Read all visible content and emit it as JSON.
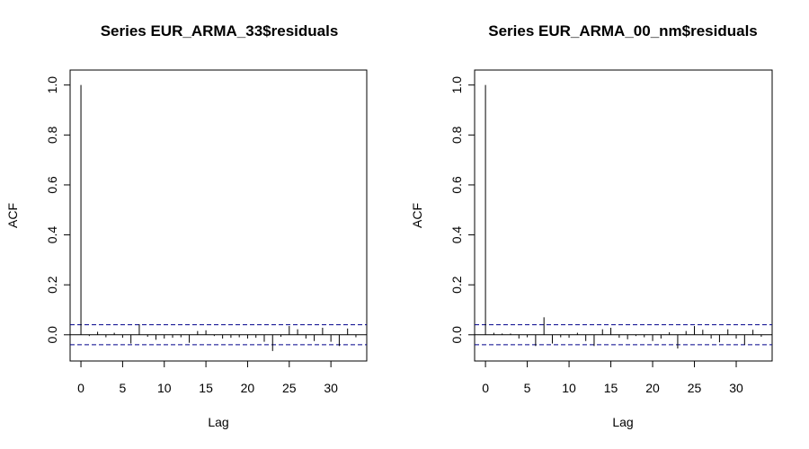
{
  "chart_data": [
    {
      "type": "bar",
      "title": "Series  EUR_ARMA_33$residuals",
      "xlabel": "Lag",
      "ylabel": "ACF",
      "xlim": [
        -1.3,
        34.3
      ],
      "ylim": [
        -0.105,
        1.06
      ],
      "xticks": [
        0,
        5,
        10,
        15,
        20,
        25,
        30
      ],
      "yticks": [
        0.0,
        0.2,
        0.4,
        0.6,
        0.8,
        1.0
      ],
      "ci": 0.04,
      "ci_color": "#00008b",
      "lags": [
        0,
        1,
        2,
        3,
        4,
        5,
        6,
        7,
        8,
        9,
        10,
        11,
        12,
        13,
        14,
        15,
        16,
        17,
        18,
        19,
        20,
        21,
        22,
        23,
        24,
        25,
        26,
        27,
        28,
        29,
        30,
        31,
        32,
        33
      ],
      "values": [
        1.0,
        -0.005,
        0.012,
        -0.01,
        0.008,
        -0.012,
        -0.035,
        0.042,
        -0.008,
        -0.02,
        -0.015,
        -0.012,
        -0.01,
        -0.032,
        0.015,
        0.018,
        -0.005,
        -0.015,
        -0.012,
        -0.01,
        -0.015,
        -0.012,
        -0.028,
        -0.065,
        -0.008,
        0.035,
        0.022,
        -0.015,
        -0.025,
        0.028,
        -0.028,
        -0.045,
        0.025,
        -0.01
      ]
    },
    {
      "type": "bar",
      "title": "Series  EUR_ARMA_00_nm$residuals",
      "xlabel": "Lag",
      "ylabel": "ACF",
      "xlim": [
        -1.3,
        34.3
      ],
      "ylim": [
        -0.105,
        1.06
      ],
      "xticks": [
        0,
        5,
        10,
        15,
        20,
        25,
        30
      ],
      "yticks": [
        0.0,
        0.2,
        0.4,
        0.6,
        0.8,
        1.0
      ],
      "ci": 0.04,
      "ci_color": "#00008b",
      "lags": [
        0,
        1,
        2,
        3,
        4,
        5,
        6,
        7,
        8,
        9,
        10,
        11,
        12,
        13,
        14,
        15,
        16,
        17,
        18,
        19,
        20,
        21,
        22,
        23,
        24,
        25,
        26,
        27,
        28,
        29,
        30,
        31,
        32,
        33
      ],
      "values": [
        1.0,
        0.008,
        0.005,
        0.005,
        -0.015,
        -0.01,
        -0.045,
        0.07,
        -0.035,
        -0.01,
        -0.012,
        0.008,
        -0.025,
        -0.045,
        0.022,
        0.028,
        -0.012,
        -0.018,
        -0.005,
        -0.01,
        -0.025,
        -0.015,
        0.01,
        -0.055,
        0.015,
        0.035,
        0.02,
        -0.015,
        -0.03,
        0.022,
        -0.015,
        -0.04,
        0.02,
        -0.008
      ]
    }
  ]
}
